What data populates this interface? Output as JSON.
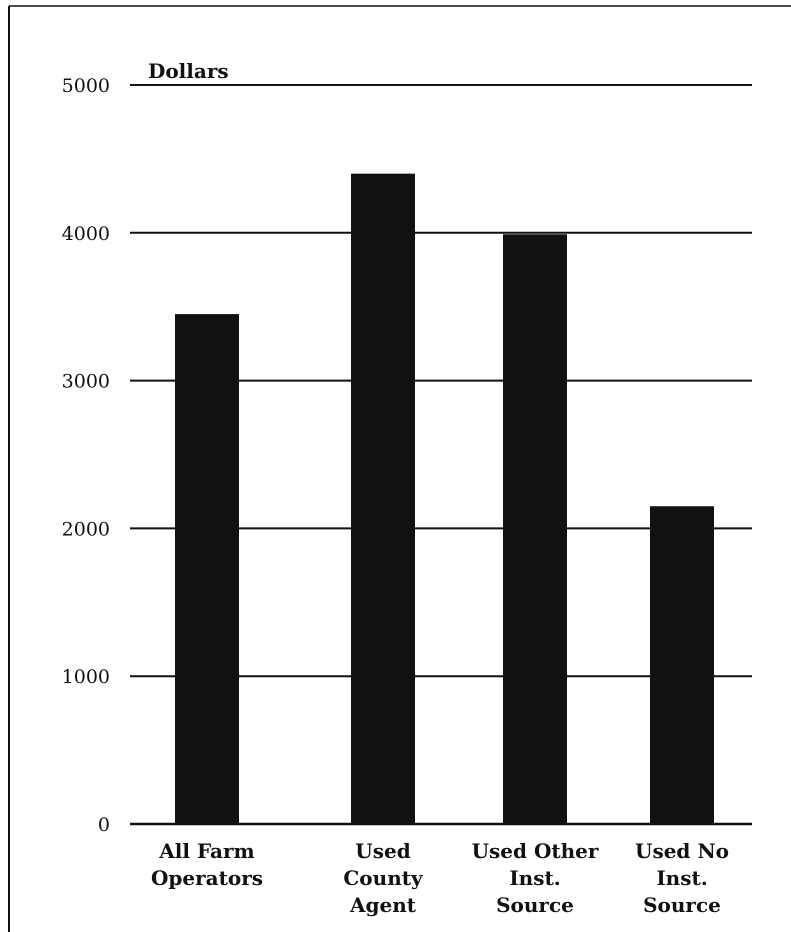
{
  "chart_data": {
    "type": "bar",
    "ylabel": "Dollars",
    "categories": [
      [
        "All Farm",
        "Operators"
      ],
      [
        "Used",
        "County",
        "Agent"
      ],
      [
        "Used Other",
        "Inst.",
        "Source"
      ],
      [
        "Used No",
        "Inst.",
        "Source"
      ]
    ],
    "values": [
      3450,
      4400,
      3990,
      2150
    ],
    "ylim": [
      0,
      5000
    ],
    "yticks": [
      "0",
      "1000",
      "2000",
      "3000",
      "4000",
      "5000"
    ],
    "grid": true,
    "bar_color": "#111111"
  }
}
